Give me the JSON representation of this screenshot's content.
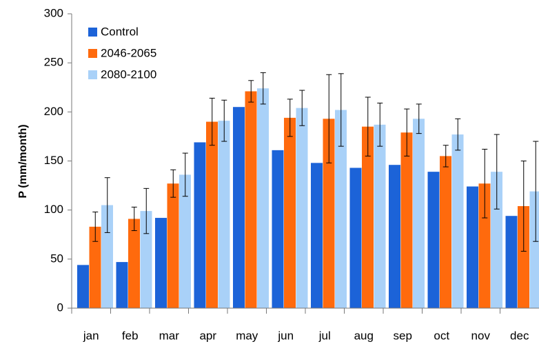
{
  "chart_data": {
    "type": "bar",
    "ylabel": "P (mm/month)",
    "categories": [
      "jan",
      "feb",
      "mar",
      "apr",
      "may",
      "jun",
      "jul",
      "aug",
      "sep",
      "oct",
      "nov",
      "dec"
    ],
    "series": [
      {
        "name": "Control",
        "color": "#1c63d8",
        "values": [
          44,
          47,
          92,
          169,
          205,
          161,
          148,
          143,
          146,
          139,
          124,
          94
        ]
      },
      {
        "name": "2046-2065",
        "color": "#ff6a0d",
        "values": [
          83,
          91,
          127,
          190,
          221,
          194,
          193,
          185,
          179,
          155,
          127,
          104
        ],
        "errors": [
          15,
          12,
          14,
          24,
          11,
          19,
          45,
          30,
          24,
          11,
          35,
          46
        ]
      },
      {
        "name": "2080-2100",
        "color": "#a9d1f8",
        "values": [
          105,
          99,
          136,
          191,
          224,
          204,
          202,
          187,
          193,
          177,
          139,
          119
        ],
        "errors": [
          28,
          23,
          22,
          21,
          16,
          18,
          37,
          22,
          15,
          16,
          38,
          51
        ]
      }
    ],
    "ylim": [
      0,
      300
    ],
    "yticks": [
      0,
      50,
      100,
      150,
      200,
      250,
      300
    ],
    "grid": false,
    "legend": "top-left"
  }
}
